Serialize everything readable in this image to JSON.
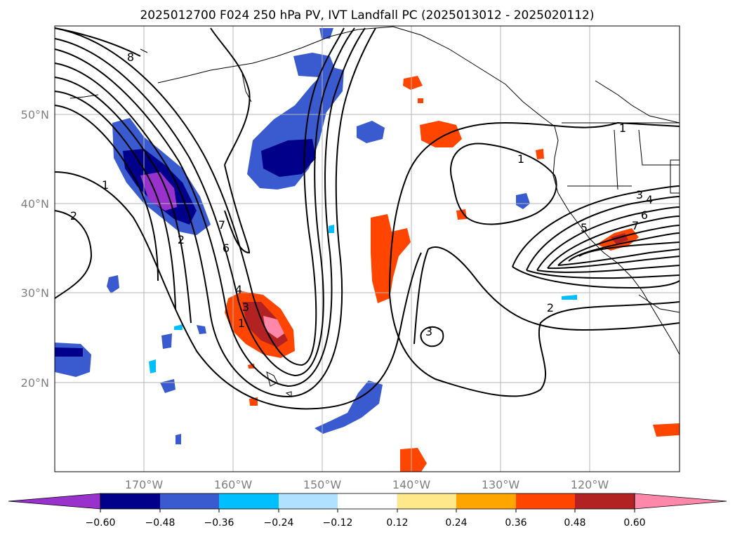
{
  "title": "2025012700 F024 250 hPa PV, IVT Landfall PC (2025013012 - 2025020112)",
  "map": {
    "lon_range": [
      -180,
      -110
    ],
    "lat_range": [
      10,
      60
    ],
    "lat_ticks": [
      {
        "value": 50,
        "label": "50°N"
      },
      {
        "value": 40,
        "label": "40°N"
      },
      {
        "value": 30,
        "label": "30°N"
      },
      {
        "value": 20,
        "label": "20°N"
      }
    ],
    "lon_ticks": [
      {
        "value": -170,
        "label": "170°W"
      },
      {
        "value": -160,
        "label": "160°W"
      },
      {
        "value": -150,
        "label": "150°W"
      },
      {
        "value": -140,
        "label": "140°W"
      },
      {
        "value": -130,
        "label": "130°W"
      },
      {
        "value": -120,
        "label": "120°W"
      }
    ],
    "grid": true,
    "contour_labels": [
      "8",
      "1",
      "2",
      "2",
      "7",
      "6",
      "4",
      "3",
      "1",
      "1",
      "3",
      "2",
      "1",
      "3",
      "4",
      "6",
      "5",
      "7"
    ]
  },
  "colorbar": {
    "ticks": [
      "−0.60",
      "−0.48",
      "−0.36",
      "−0.24",
      "−0.12",
      "0.12",
      "0.24",
      "0.36",
      "0.48",
      "0.60"
    ],
    "colors": [
      "#9932cc",
      "#00008b",
      "#3a5bd0",
      "#00bfff",
      "#b0e2ff",
      "#ffffff",
      "#ffe88a",
      "#ffa500",
      "#ff4500",
      "#b22222",
      "#ff88aa"
    ]
  }
}
